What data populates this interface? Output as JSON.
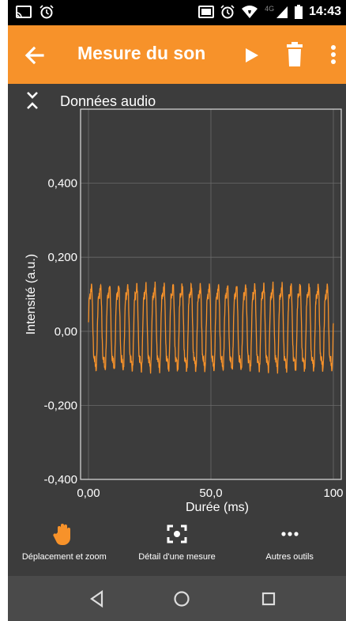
{
  "status_bar": {
    "time": "14:43",
    "network": "4G",
    "icons": [
      "cast-icon",
      "alarm-icon",
      "alarm-icon",
      "wifi-icon",
      "signal-icon",
      "battery-icon"
    ]
  },
  "app_bar": {
    "title": "Mesure du son",
    "icons": [
      "arrow-back-icon",
      "play-icon",
      "trash-icon",
      "more-vert-icon"
    ],
    "background": "#f7922a"
  },
  "graph": {
    "title": "Données audio",
    "collapse_icon": "collapse-icon"
  },
  "chart_data": {
    "type": "line",
    "xlabel": "Durée (ms)",
    "ylabel": "Intensité (a.u.)",
    "xlim": [
      0,
      100
    ],
    "ylim": [
      -0.4,
      0.6
    ],
    "x_ticks": [
      0,
      50,
      100
    ],
    "x_tick_labels": [
      "0,00",
      "50,0",
      "100"
    ],
    "y_ticks": [
      -0.4,
      -0.2,
      0,
      0.2,
      0.4
    ],
    "y_tick_labels": [
      "-0,400",
      "-0,200",
      "0,00",
      "0,200",
      "0,400"
    ],
    "grid": true,
    "series": [
      {
        "color": "#f7922a",
        "cycles": 27,
        "amplitude_max": 0.15,
        "amplitude_min": -0.13,
        "duration_ms": 100
      }
    ]
  },
  "toolbar": {
    "items": [
      {
        "label": "Déplacement et zoom",
        "icon": "hand-icon",
        "active": true
      },
      {
        "label": "Détail d'une mesure",
        "icon": "focus-icon",
        "active": false
      },
      {
        "label": "Autres outils",
        "icon": "more-horiz-icon",
        "active": false
      }
    ],
    "active_color": "#f7922a"
  },
  "nav_bar": {
    "icons": [
      "back-triangle-icon",
      "home-circle-icon",
      "recents-square-icon"
    ]
  }
}
